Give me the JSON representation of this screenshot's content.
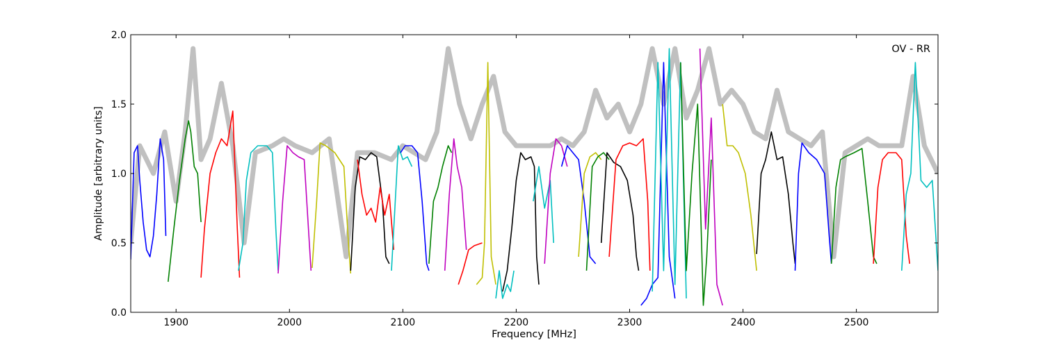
{
  "chart_data": {
    "type": "line",
    "title": "",
    "xlabel": "Frequency [MHz]",
    "ylabel": "Amplitude [arbitrary units]",
    "xlim": [
      1860,
      2572
    ],
    "ylim": [
      0.0,
      2.0
    ],
    "x_ticks": [
      1900,
      2000,
      2100,
      2200,
      2300,
      2400,
      2500
    ],
    "y_ticks": [
      "0.0",
      "0.5",
      "1.0",
      "1.5",
      "2.0"
    ],
    "annotation": "OV - RR",
    "grid": false,
    "reference_color": "#c0c0c0",
    "reference": [
      [
        1860,
        0.5
      ],
      [
        1868,
        1.2
      ],
      [
        1880,
        1.0
      ],
      [
        1890,
        1.3
      ],
      [
        1900,
        0.8
      ],
      [
        1908,
        1.3
      ],
      [
        1915,
        1.9
      ],
      [
        1922,
        1.1
      ],
      [
        1930,
        1.25
      ],
      [
        1940,
        1.65
      ],
      [
        1950,
        1.2
      ],
      [
        1960,
        0.5
      ],
      [
        1970,
        1.15
      ],
      [
        1985,
        1.2
      ],
      [
        1995,
        1.25
      ],
      [
        2005,
        1.2
      ],
      [
        2020,
        1.15
      ],
      [
        2035,
        1.25
      ],
      [
        2050,
        0.4
      ],
      [
        2060,
        1.15
      ],
      [
        2075,
        1.15
      ],
      [
        2090,
        1.1
      ],
      [
        2100,
        1.2
      ],
      [
        2110,
        1.15
      ],
      [
        2120,
        1.1
      ],
      [
        2130,
        1.3
      ],
      [
        2140,
        1.9
      ],
      [
        2150,
        1.5
      ],
      [
        2160,
        1.25
      ],
      [
        2170,
        1.5
      ],
      [
        2180,
        1.7
      ],
      [
        2190,
        1.3
      ],
      [
        2200,
        1.2
      ],
      [
        2210,
        1.2
      ],
      [
        2220,
        1.2
      ],
      [
        2230,
        1.2
      ],
      [
        2240,
        1.25
      ],
      [
        2250,
        1.2
      ],
      [
        2260,
        1.3
      ],
      [
        2270,
        1.6
      ],
      [
        2280,
        1.4
      ],
      [
        2290,
        1.5
      ],
      [
        2300,
        1.3
      ],
      [
        2310,
        1.5
      ],
      [
        2320,
        1.9
      ],
      [
        2330,
        1.5
      ],
      [
        2340,
        1.9
      ],
      [
        2350,
        1.4
      ],
      [
        2360,
        1.6
      ],
      [
        2370,
        1.9
      ],
      [
        2380,
        1.5
      ],
      [
        2390,
        1.6
      ],
      [
        2400,
        1.5
      ],
      [
        2410,
        1.3
      ],
      [
        2420,
        1.25
      ],
      [
        2430,
        1.6
      ],
      [
        2440,
        1.3
      ],
      [
        2450,
        1.25
      ],
      [
        2460,
        1.2
      ],
      [
        2470,
        1.3
      ],
      [
        2480,
        0.4
      ],
      [
        2490,
        1.15
      ],
      [
        2500,
        1.2
      ],
      [
        2510,
        1.25
      ],
      [
        2520,
        1.2
      ],
      [
        2530,
        1.2
      ],
      [
        2540,
        1.2
      ],
      [
        2550,
        1.7
      ],
      [
        2560,
        1.2
      ],
      [
        2572,
        1.0
      ]
    ],
    "series": [
      {
        "color": "#0000ff",
        "x": [
          1860,
          1863,
          1866,
          1868,
          1871,
          1874,
          1877,
          1880,
          1883,
          1886,
          1889,
          1891
        ],
        "y": [
          0.38,
          1.15,
          1.2,
          0.95,
          0.65,
          0.45,
          0.4,
          0.55,
          0.85,
          1.25,
          1.1,
          0.55
        ]
      },
      {
        "color": "#008000",
        "x": [
          1893,
          1898,
          1903,
          1908,
          1911,
          1913,
          1916,
          1919,
          1922
        ],
        "y": [
          0.22,
          0.6,
          0.95,
          1.25,
          1.38,
          1.3,
          1.05,
          1.0,
          0.65
        ]
      },
      {
        "color": "#ff0000",
        "x": [
          1922,
          1925,
          1930,
          1935,
          1940,
          1945,
          1950,
          1954,
          1956
        ],
        "y": [
          0.25,
          0.6,
          1.0,
          1.15,
          1.25,
          1.2,
          1.45,
          0.6,
          0.25
        ]
      },
      {
        "color": "#00bfbf",
        "x": [
          1955,
          1959,
          1962,
          1966,
          1972,
          1980,
          1985,
          1988,
          1990
        ],
        "y": [
          0.3,
          0.5,
          0.95,
          1.15,
          1.2,
          1.2,
          1.15,
          0.6,
          0.3
        ]
      },
      {
        "color": "#bf00bf",
        "x": [
          1990,
          1994,
          1998,
          2003,
          2008,
          2013,
          2016,
          2019
        ],
        "y": [
          0.28,
          0.8,
          1.2,
          1.15,
          1.12,
          1.1,
          0.7,
          0.3
        ]
      },
      {
        "color": "#bfbf00",
        "x": [
          2020,
          2024,
          2027,
          2032,
          2040,
          2048,
          2052,
          2054
        ],
        "y": [
          0.32,
          0.8,
          1.22,
          1.2,
          1.15,
          1.05,
          0.5,
          0.28
        ]
      },
      {
        "color": "#000000",
        "x": [
          2054,
          2058,
          2062,
          2067,
          2072,
          2077,
          2082,
          2085,
          2088
        ],
        "y": [
          0.3,
          0.9,
          1.12,
          1.1,
          1.15,
          1.12,
          0.8,
          0.4,
          0.35
        ]
      },
      {
        "color": "#ff0000",
        "x": [
          2060,
          2064,
          2068,
          2072,
          2076,
          2080,
          2084,
          2088,
          2092
        ],
        "y": [
          1.1,
          0.85,
          0.7,
          0.75,
          0.65,
          0.9,
          0.7,
          0.85,
          0.45
        ]
      },
      {
        "color": "#00bfbf",
        "x": [
          2090,
          2093,
          2096,
          2100,
          2104,
          2108
        ],
        "y": [
          0.3,
          0.75,
          1.2,
          1.1,
          1.12,
          1.05
        ]
      },
      {
        "color": "#0000ff",
        "x": [
          2098,
          2102,
          2108,
          2113,
          2117,
          2121,
          2123
        ],
        "y": [
          1.15,
          1.2,
          1.2,
          1.15,
          0.8,
          0.35,
          0.3
        ]
      },
      {
        "color": "#008000",
        "x": [
          2123,
          2127,
          2131,
          2135,
          2140,
          2143
        ],
        "y": [
          0.35,
          0.8,
          0.9,
          1.05,
          1.2,
          1.15
        ]
      },
      {
        "color": "#bf00bf",
        "x": [
          2137,
          2141,
          2145,
          2148,
          2152,
          2156
        ],
        "y": [
          0.3,
          0.85,
          1.25,
          1.05,
          0.9,
          0.45
        ]
      },
      {
        "color": "#ff0000",
        "x": [
          2149,
          2153,
          2158,
          2163,
          2170
        ],
        "y": [
          0.2,
          0.3,
          0.45,
          0.48,
          0.5
        ]
      },
      {
        "color": "#bfbf00",
        "x": [
          2165,
          2170,
          2172,
          2175,
          2178,
          2182
        ],
        "y": [
          0.2,
          0.25,
          0.5,
          1.8,
          0.4,
          0.2
        ]
      },
      {
        "color": "#00bfbf",
        "x": [
          2182,
          2185,
          2188,
          2192,
          2195,
          2198
        ],
        "y": [
          0.1,
          0.3,
          0.1,
          0.2,
          0.15,
          0.3
        ]
      },
      {
        "color": "#000000",
        "x": [
          2188,
          2192,
          2196,
          2200,
          2204,
          2208,
          2213,
          2216,
          2218,
          2220
        ],
        "y": [
          0.15,
          0.3,
          0.6,
          0.95,
          1.15,
          1.1,
          1.12,
          1.05,
          0.4,
          0.2
        ]
      },
      {
        "color": "#00bfbf",
        "x": [
          2215,
          2220,
          2225,
          2230,
          2233
        ],
        "y": [
          0.8,
          1.05,
          0.75,
          0.95,
          0.5
        ]
      },
      {
        "color": "#bf00bf",
        "x": [
          2225,
          2230,
          2235,
          2240,
          2245
        ],
        "y": [
          0.35,
          1.0,
          1.25,
          1.2,
          1.05
        ]
      },
      {
        "color": "#0000ff",
        "x": [
          2240,
          2245,
          2250,
          2255,
          2260,
          2265,
          2270
        ],
        "y": [
          1.05,
          1.2,
          1.15,
          1.1,
          0.8,
          0.4,
          0.35
        ]
      },
      {
        "color": "#bfbf00",
        "x": [
          2255,
          2260,
          2265,
          2270,
          2275
        ],
        "y": [
          0.4,
          1.0,
          1.12,
          1.15,
          1.1
        ]
      },
      {
        "color": "#008000",
        "x": [
          2262,
          2267,
          2272,
          2277,
          2282
        ],
        "y": [
          0.3,
          1.05,
          1.12,
          1.15,
          1.1
        ]
      },
      {
        "color": "#000000",
        "x": [
          2275,
          2280,
          2286,
          2292,
          2298,
          2303,
          2306,
          2308
        ],
        "y": [
          0.5,
          1.15,
          1.08,
          1.05,
          0.95,
          0.7,
          0.4,
          0.3
        ]
      },
      {
        "color": "#ff0000",
        "x": [
          2282,
          2288,
          2294,
          2300,
          2306,
          2312,
          2316,
          2318
        ],
        "y": [
          0.4,
          1.1,
          1.2,
          1.22,
          1.2,
          1.25,
          0.8,
          0.3
        ]
      },
      {
        "color": "#0000ff",
        "x": [
          2310,
          2315,
          2320,
          2325,
          2330,
          2335,
          2340
        ],
        "y": [
          0.05,
          0.1,
          0.2,
          0.25,
          1.8,
          0.4,
          0.1
        ]
      },
      {
        "color": "#00bfbf",
        "x": [
          2320,
          2325,
          2330,
          2335,
          2340,
          2345,
          2350
        ],
        "y": [
          0.15,
          1.8,
          0.3,
          1.9,
          0.2,
          1.8,
          0.1
        ]
      },
      {
        "color": "#008000",
        "x": [
          2345,
          2350,
          2355,
          2360,
          2365,
          2368,
          2372
        ],
        "y": [
          1.8,
          0.3,
          1.0,
          1.5,
          0.05,
          0.4,
          1.1
        ]
      },
      {
        "color": "#bf00bf",
        "x": [
          2362,
          2367,
          2372,
          2377,
          2382
        ],
        "y": [
          1.9,
          0.6,
          1.4,
          0.2,
          0.05
        ]
      },
      {
        "color": "#bfbf00",
        "x": [
          2382,
          2386,
          2391,
          2396,
          2402,
          2407,
          2412
        ],
        "y": [
          1.5,
          1.2,
          1.2,
          1.15,
          1.0,
          0.7,
          0.3
        ]
      },
      {
        "color": "#000000",
        "x": [
          2412,
          2416,
          2420,
          2425,
          2430,
          2435,
          2440,
          2444,
          2446
        ],
        "y": [
          0.42,
          1.0,
          1.1,
          1.3,
          1.1,
          1.12,
          0.85,
          0.5,
          0.35
        ]
      },
      {
        "color": "#0000ff",
        "x": [
          2446,
          2449,
          2452,
          2458,
          2465,
          2472,
          2476,
          2478
        ],
        "y": [
          0.3,
          1.0,
          1.22,
          1.15,
          1.1,
          1.0,
          0.55,
          0.35
        ]
      },
      {
        "color": "#008000",
        "x": [
          2478,
          2482,
          2486,
          2490,
          2498,
          2505,
          2510,
          2515,
          2518
        ],
        "y": [
          0.35,
          0.9,
          1.1,
          1.12,
          1.15,
          1.18,
          0.8,
          0.4,
          0.35
        ]
      },
      {
        "color": "#ff0000",
        "x": [
          2515,
          2519,
          2523,
          2528,
          2535,
          2540,
          2544,
          2547
        ],
        "y": [
          0.35,
          0.9,
          1.1,
          1.15,
          1.15,
          1.1,
          0.55,
          0.35
        ]
      },
      {
        "color": "#00bfbf",
        "x": [
          2540,
          2544,
          2548,
          2552,
          2557,
          2562,
          2567,
          2572
        ],
        "y": [
          0.3,
          0.85,
          1.0,
          1.8,
          0.95,
          0.9,
          0.95,
          0.3
        ]
      }
    ]
  }
}
